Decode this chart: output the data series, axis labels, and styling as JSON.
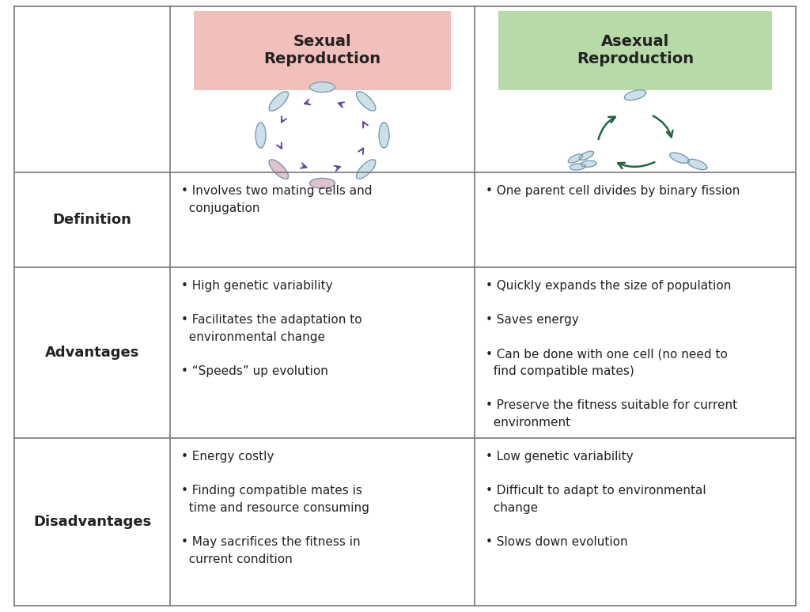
{
  "title_sexual": "Sexual\nReproduction",
  "title_asexual": "Asexual\nReproduction",
  "title_sexual_bg": "#f2c0bc",
  "title_asexual_bg": "#b8d9a8",
  "row_label_fontsize": 13,
  "content_fontsize": 11,
  "title_fontsize": 14,
  "background_color": "#ffffff",
  "grid_color": "#777777",
  "text_color": "#222222",
  "definition_sexual": "• Involves two mating cells and\n  conjugation",
  "definition_asexual": "• One parent cell divides by binary fission",
  "advantages_sexual": "• High genetic variability\n\n• Facilitates the adaptation to\n  environmental change\n\n• “Speeds” up evolution",
  "advantages_asexual": "• Quickly expands the size of population\n\n• Saves energy\n\n• Can be done with one cell (no need to\n  find compatible mates)\n\n• Preserve the fitness suitable for current\n  environment",
  "disadvantages_sexual": "• Energy costly\n\n• Finding compatible mates is\n  time and resource consuming\n\n• May sacrifices the fitness in\n  current condition",
  "disadvantages_asexual": "• Low genetic variability\n\n• Difficult to adapt to environmental\n  change\n\n• Slows down evolution",
  "arrow_color_sexual": "#6644aa",
  "arrow_color_asexual": "#226644",
  "cell_fill": "#c8dde8",
  "cell_outline": "#7799aa"
}
